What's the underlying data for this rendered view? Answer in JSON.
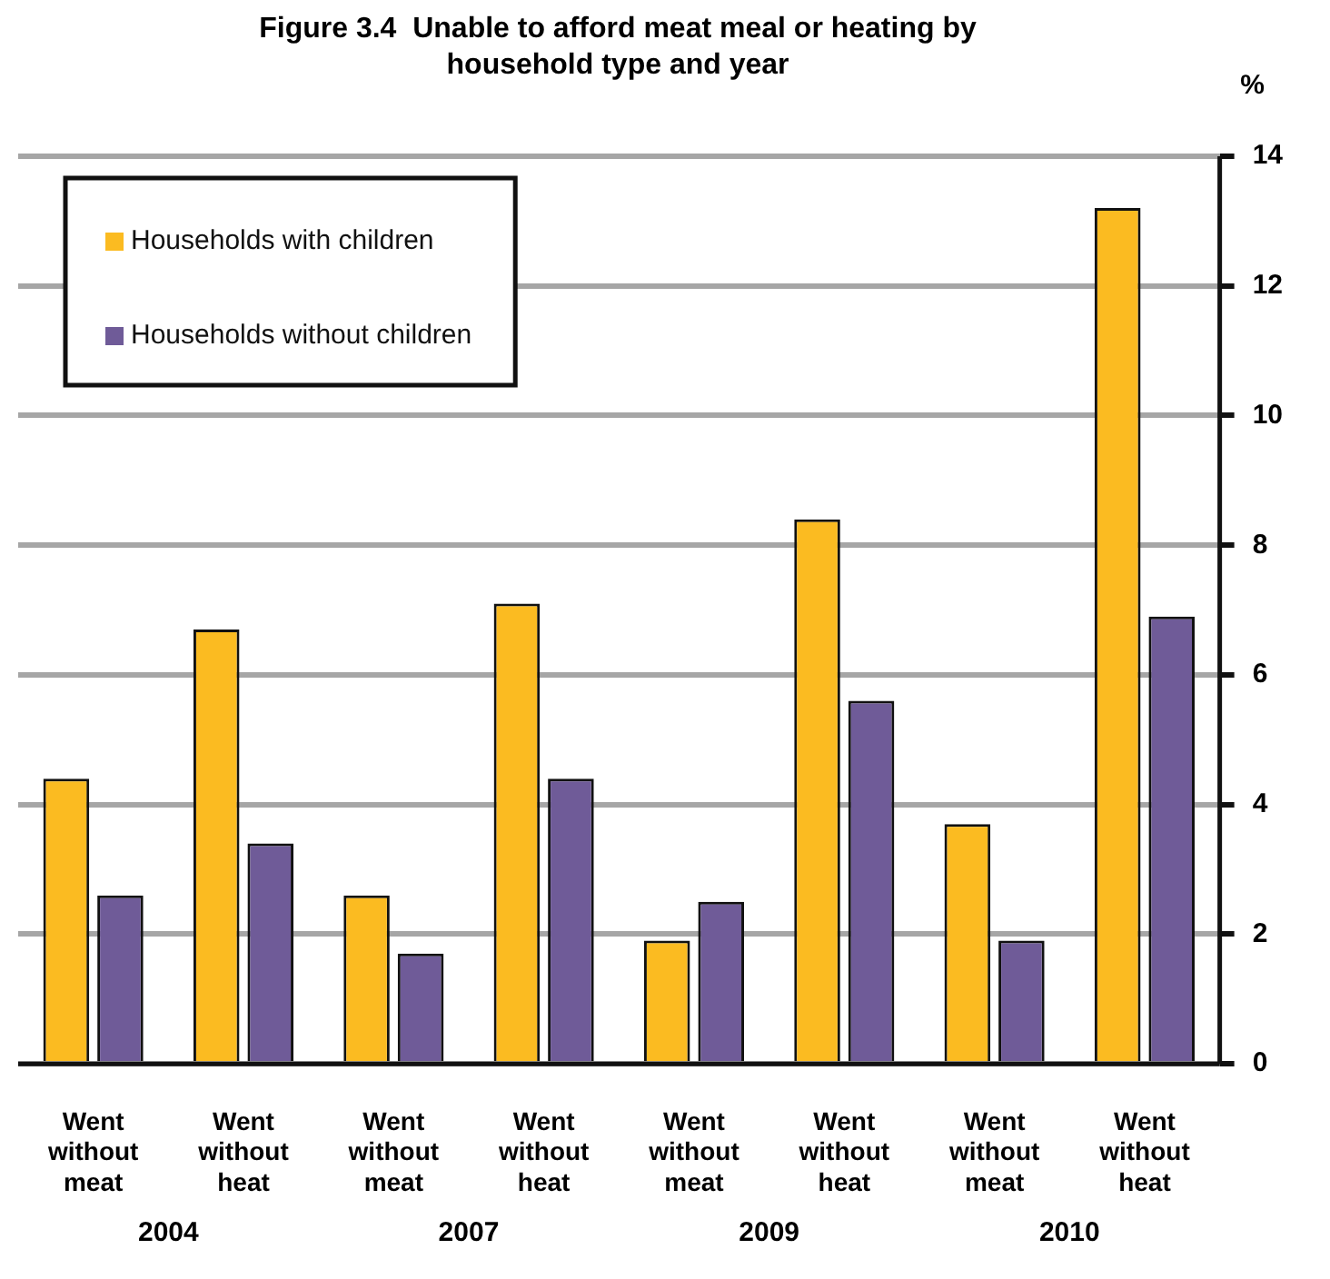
{
  "chart_data": {
    "type": "bar",
    "title": "Figure 3.4  Unable to afford meat meal or heating by household type and year",
    "ylabel": "%",
    "categories": [
      "Went without meat",
      "Went without heat",
      "Went without meat",
      "Went without heat",
      "Went without meat",
      "Went without heat",
      "Went without meat",
      "Went without heat"
    ],
    "series": [
      {
        "name": "Households with children",
        "color": "#fbbb21",
        "values": [
          4.4,
          6.7,
          2.6,
          7.1,
          1.9,
          8.4,
          3.7,
          13.2
        ]
      },
      {
        "name": "Households without children",
        "color": "#6f5b98",
        "values": [
          2.6,
          3.4,
          1.7,
          4.4,
          2.5,
          5.6,
          1.9,
          6.9
        ]
      }
    ],
    "annotations": [
      "2004",
      "2007",
      "2009",
      "2010"
    ],
    "ylim": [
      0,
      14
    ],
    "yticks": [
      0,
      2,
      4,
      6,
      8,
      10,
      12,
      14
    ],
    "grid": "y",
    "legend": "top left"
  }
}
